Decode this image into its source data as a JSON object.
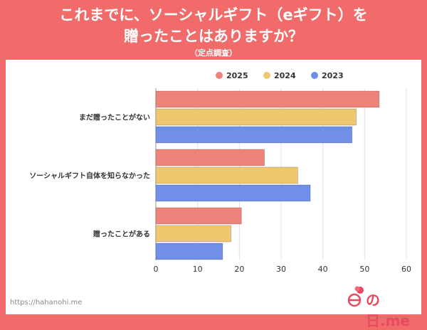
{
  "header": {
    "title_line1": "これまでに、ソーシャルギフト（eギフト）を",
    "title_line2": "贈ったことはありますか？",
    "subtitle": "（定点調査）"
  },
  "footer": {
    "url": "https://hahanohi.me",
    "logo_text": "の日.me"
  },
  "colors": {
    "background": "#f26b6b",
    "series_2025": "#ef837a",
    "series_2024": "#efc76e",
    "series_2023": "#6f8fe8"
  },
  "chart_data": {
    "type": "bar",
    "orientation": "horizontal",
    "title": "",
    "xlabel": "",
    "ylabel": "",
    "categories": [
      "まだ贈ったことがない",
      "ソーシャルギフト自体を知らなかった",
      "贈ったことがある"
    ],
    "series": [
      {
        "name": "2025",
        "values": [
          53.5,
          26,
          20.5
        ]
      },
      {
        "name": "2024",
        "values": [
          48,
          34,
          18
        ]
      },
      {
        "name": "2023",
        "values": [
          47,
          37,
          16
        ]
      }
    ],
    "xlim": [
      0,
      60
    ],
    "xticks": [
      "0",
      "10",
      "20",
      "30",
      "40",
      "50",
      "60"
    ],
    "grid": true,
    "legend_position": "top"
  }
}
